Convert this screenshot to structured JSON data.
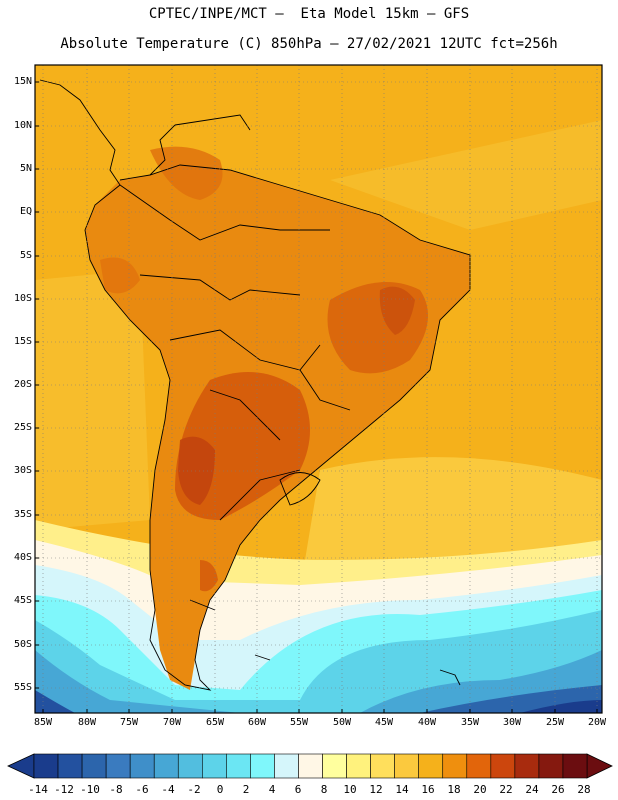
{
  "header": {
    "line1": "CPTEC/INPE/MCT —  Eta Model 15km — GFS",
    "line2": "Absolute Temperature (C) 850hPa — 27/02/2021 12UTC fct=256h"
  },
  "map": {
    "lat_labels": [
      "15N",
      "10N",
      "5N",
      "EQ",
      "5S",
      "10S",
      "15S",
      "20S",
      "25S",
      "30S",
      "35S",
      "40S",
      "45S",
      "50S",
      "55S"
    ],
    "lon_labels": [
      "85W",
      "80W",
      "75W",
      "70W",
      "65W",
      "60W",
      "55W",
      "50W",
      "45W",
      "40W",
      "35W",
      "30W",
      "25W",
      "20W"
    ]
  },
  "colorbar": {
    "labels": [
      "-14",
      "-12",
      "-10",
      "-8",
      "-6",
      "-4",
      "-2",
      "0",
      "2",
      "4",
      "6",
      "8",
      "10",
      "12",
      "14",
      "16",
      "18",
      "20",
      "22",
      "24",
      "26",
      "28"
    ],
    "colors": [
      "#1a3c8c",
      "#23519f",
      "#2c65ac",
      "#3a7bbf",
      "#3f8fc9",
      "#47a7d5",
      "#52bedf",
      "#5dd3e9",
      "#6be6f3",
      "#7ff7fb",
      "#d5f6fb",
      "#fff7e6",
      "#ffff9e",
      "#fff27d",
      "#ffdf5c",
      "#fbc93e",
      "#f5b11b",
      "#ef8f0e",
      "#e2650b",
      "#cc460d",
      "#a82b0e",
      "#85190f",
      "#6b0d10"
    ]
  },
  "palette": {
    "land_hot": "#d2560b",
    "land_warm": "#e98a10",
    "ocean": "#f5b11b",
    "cold_south": "#3f8fc9"
  }
}
